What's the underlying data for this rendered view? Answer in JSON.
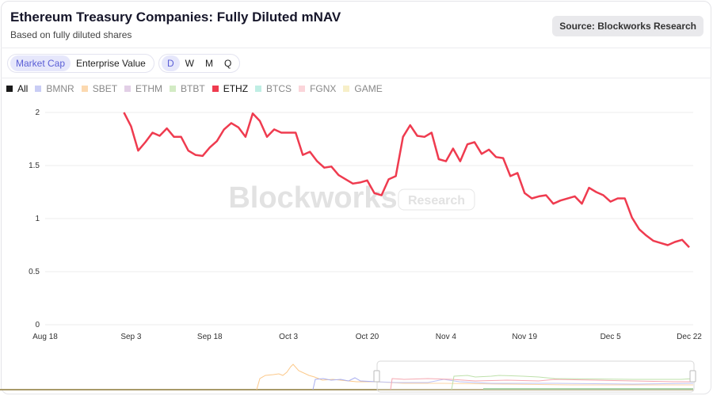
{
  "header": {
    "title": "Ethereum Treasury Companies: Fully Diluted mNAV",
    "subtitle": "Based on fully diluted shares",
    "source": "Source: Blockworks Research"
  },
  "controls": {
    "basis": [
      {
        "label": "Market Cap",
        "active": true
      },
      {
        "label": "Enterprise Value",
        "active": false
      }
    ],
    "frequency": [
      {
        "label": "D",
        "active": true
      },
      {
        "label": "W",
        "active": false
      },
      {
        "label": "M",
        "active": false
      },
      {
        "label": "Q",
        "active": false
      }
    ]
  },
  "legend": [
    {
      "label": "All",
      "color": "#1a1a1a",
      "active": true
    },
    {
      "label": "BMNR",
      "color": "#c9cdf5",
      "active": false
    },
    {
      "label": "SBET",
      "color": "#fcd9b0",
      "active": false
    },
    {
      "label": "ETHM",
      "color": "#e2cfe6",
      "active": false
    },
    {
      "label": "BTBT",
      "color": "#d3ebc4",
      "active": false
    },
    {
      "label": "ETHZ",
      "color": "#ef3b4f",
      "active": true
    },
    {
      "label": "BTCS",
      "color": "#bfeee4",
      "active": false
    },
    {
      "label": "FGNX",
      "color": "#fbd5da",
      "active": false
    },
    {
      "label": "GAME",
      "color": "#f7efc8",
      "active": false
    }
  ],
  "watermark": {
    "brand": "Blockworks",
    "badge": "Research"
  },
  "chart_data": {
    "type": "line",
    "title": "",
    "xlabel": "",
    "ylabel": "",
    "ylim": [
      0,
      2
    ],
    "grid": true,
    "yticks": [
      "0",
      "0.5",
      "1",
      "1.5",
      "2"
    ],
    "xticks": [
      "Aug 18",
      "Sep 3",
      "Sep 18",
      "Oct 3",
      "Oct 20",
      "Nov 4",
      "Nov 19",
      "Dec 5",
      "Dec 22"
    ],
    "xtick_dates": [
      "2025-08-18",
      "2025-09-03",
      "2025-09-18",
      "2025-10-03",
      "2025-10-20",
      "2025-11-04",
      "2025-11-19",
      "2025-12-05",
      "2025-12-22"
    ],
    "series": [
      {
        "name": "ETHZ",
        "color": "#ef3b4f",
        "x": [
          "2025-09-02",
          "2025-09-03",
          "2025-09-04",
          "2025-09-05",
          "2025-09-08",
          "2025-09-09",
          "2025-09-10",
          "2025-09-11",
          "2025-09-12",
          "2025-09-15",
          "2025-09-16",
          "2025-09-17",
          "2025-09-18",
          "2025-09-19",
          "2025-09-22",
          "2025-09-23",
          "2025-09-24",
          "2025-09-25",
          "2025-09-26",
          "2025-09-29",
          "2025-09-30",
          "2025-10-01",
          "2025-10-02",
          "2025-10-03",
          "2025-10-06",
          "2025-10-07",
          "2025-10-08",
          "2025-10-09",
          "2025-10-10",
          "2025-10-13",
          "2025-10-14",
          "2025-10-15",
          "2025-10-16",
          "2025-10-17",
          "2025-10-20",
          "2025-10-21",
          "2025-10-22",
          "2025-10-23",
          "2025-10-24",
          "2025-10-27",
          "2025-10-28",
          "2025-10-29",
          "2025-10-30",
          "2025-10-31",
          "2025-11-03",
          "2025-11-04",
          "2025-11-05",
          "2025-11-06",
          "2025-11-07",
          "2025-11-10",
          "2025-11-11",
          "2025-11-12",
          "2025-11-13",
          "2025-11-14",
          "2025-11-17",
          "2025-11-18",
          "2025-11-19",
          "2025-11-20",
          "2025-11-21",
          "2025-11-24",
          "2025-11-25",
          "2025-11-26",
          "2025-11-28",
          "2025-12-01",
          "2025-12-02",
          "2025-12-03",
          "2025-12-04",
          "2025-12-05",
          "2025-12-08",
          "2025-12-09",
          "2025-12-10",
          "2025-12-11",
          "2025-12-12",
          "2025-12-15",
          "2025-12-16",
          "2025-12-17",
          "2025-12-18",
          "2025-12-19",
          "2025-12-22"
        ],
        "y": [
          2.0,
          1.87,
          1.64,
          1.72,
          1.81,
          1.78,
          1.85,
          1.77,
          1.77,
          1.64,
          1.6,
          1.59,
          1.67,
          1.73,
          1.84,
          1.9,
          1.86,
          1.77,
          1.99,
          1.92,
          1.77,
          1.84,
          1.81,
          1.81,
          1.81,
          1.6,
          1.63,
          1.54,
          1.48,
          1.49,
          1.41,
          1.37,
          1.33,
          1.34,
          1.36,
          1.24,
          1.22,
          1.37,
          1.4,
          1.77,
          1.88,
          1.78,
          1.77,
          1.81,
          1.56,
          1.54,
          1.66,
          1.54,
          1.7,
          1.72,
          1.61,
          1.65,
          1.58,
          1.57,
          1.4,
          1.43,
          1.24,
          1.19,
          1.21,
          1.22,
          1.14,
          1.17,
          1.21,
          1.14,
          1.29,
          1.25,
          1.22,
          1.16,
          1.19,
          1.19,
          1.01,
          0.9,
          0.84,
          0.79,
          0.77,
          0.75,
          0.78,
          0.8,
          0.73
        ]
      }
    ]
  }
}
